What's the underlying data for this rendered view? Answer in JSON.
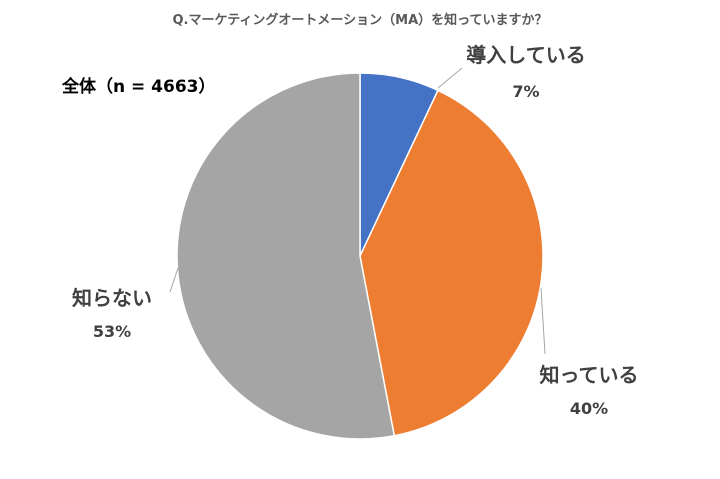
{
  "chart_data": {
    "type": "pie",
    "title": "Q.マーケティングオートメーション（MA）を知っていますか？",
    "subset_label": "全体（n = 4663）",
    "slices": [
      {
        "label": "導入している",
        "value": 7,
        "value_label": "7%",
        "color": "#4472C4"
      },
      {
        "label": "知っている",
        "value": 40,
        "value_label": "40%",
        "color": "#ED7D31"
      },
      {
        "label": "知らない",
        "value": 53,
        "value_label": "53%",
        "color": "#A5A5A5"
      }
    ]
  }
}
